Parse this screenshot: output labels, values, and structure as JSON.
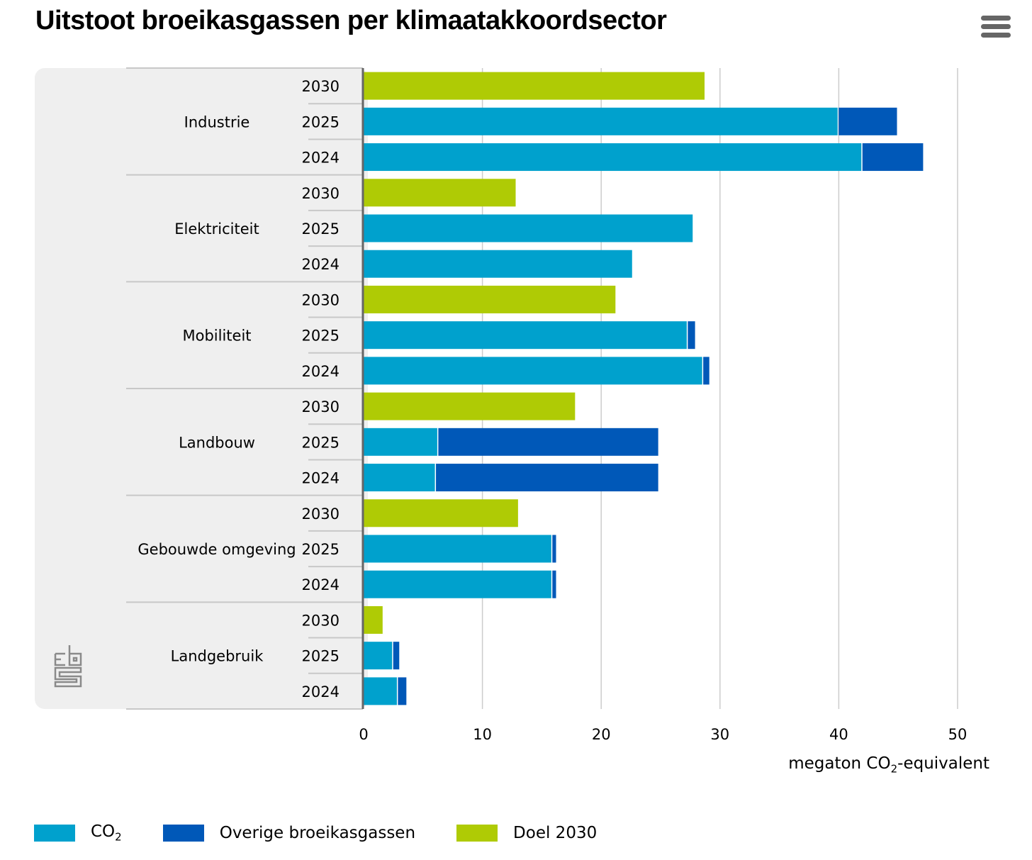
{
  "title": "Uitstoot broeikasgassen per klimaatakkoordsector",
  "menu_icon": "hamburger-menu-icon",
  "logo_icon": "cbs-logo-icon",
  "colors": {
    "co2": "#00a1cd",
    "other": "#0058b8",
    "target": "#afcb05",
    "panel": "#efefef",
    "grid": "#cccccc",
    "axis": "#666666"
  },
  "axis_title": {
    "prefix": "megaton CO",
    "sub": "2",
    "suffix": "-equivalent"
  },
  "legend": [
    {
      "key": "co2",
      "label": "CO",
      "sub": "2"
    },
    {
      "key": "other",
      "label": "Overige broeikasgassen",
      "sub": ""
    },
    {
      "key": "target",
      "label": "Doel 2030",
      "sub": ""
    }
  ],
  "chart_data": {
    "type": "bar",
    "orientation": "horizontal",
    "stacked": true,
    "title": "Uitstoot broeikasgassen per klimaatakkoordsector",
    "xlabel": "megaton CO2-equivalent",
    "ylabel": "",
    "xlim": [
      0,
      50
    ],
    "xticks": [
      0,
      10,
      20,
      30,
      40,
      50
    ],
    "grid": true,
    "legend_position": "bottom",
    "groups": [
      {
        "sector": "Industrie",
        "rows": [
          {
            "year": "2030",
            "target": 28.7
          },
          {
            "year": "2025",
            "co2": 39.9,
            "other": 5.0
          },
          {
            "year": "2024",
            "co2": 41.9,
            "other": 5.2
          }
        ]
      },
      {
        "sector": "Elektriciteit",
        "rows": [
          {
            "year": "2030",
            "target": 12.8
          },
          {
            "year": "2025",
            "co2": 27.7,
            "other": 0
          },
          {
            "year": "2024",
            "co2": 22.6,
            "other": 0
          }
        ]
      },
      {
        "sector": "Mobiliteit",
        "rows": [
          {
            "year": "2030",
            "target": 21.2
          },
          {
            "year": "2025",
            "co2": 27.2,
            "other": 0.7
          },
          {
            "year": "2024",
            "co2": 28.5,
            "other": 0.6
          }
        ]
      },
      {
        "sector": "Landbouw",
        "rows": [
          {
            "year": "2030",
            "target": 17.8
          },
          {
            "year": "2025",
            "co2": 6.2,
            "other": 18.6
          },
          {
            "year": "2024",
            "co2": 6.0,
            "other": 18.8
          }
        ]
      },
      {
        "sector": "Gebouwde omgeving",
        "rows": [
          {
            "year": "2030",
            "target": 13.0
          },
          {
            "year": "2025",
            "co2": 15.8,
            "other": 0.4
          },
          {
            "year": "2024",
            "co2": 15.8,
            "other": 0.4
          }
        ]
      },
      {
        "sector": "Landgebruik",
        "rows": [
          {
            "year": "2030",
            "target": 1.6
          },
          {
            "year": "2025",
            "co2": 2.4,
            "other": 0.6
          },
          {
            "year": "2024",
            "co2": 2.8,
            "other": 0.8
          }
        ]
      }
    ],
    "series": [
      {
        "name": "CO2",
        "key": "co2"
      },
      {
        "name": "Overige broeikasgassen",
        "key": "other"
      },
      {
        "name": "Doel 2030",
        "key": "target"
      }
    ]
  }
}
